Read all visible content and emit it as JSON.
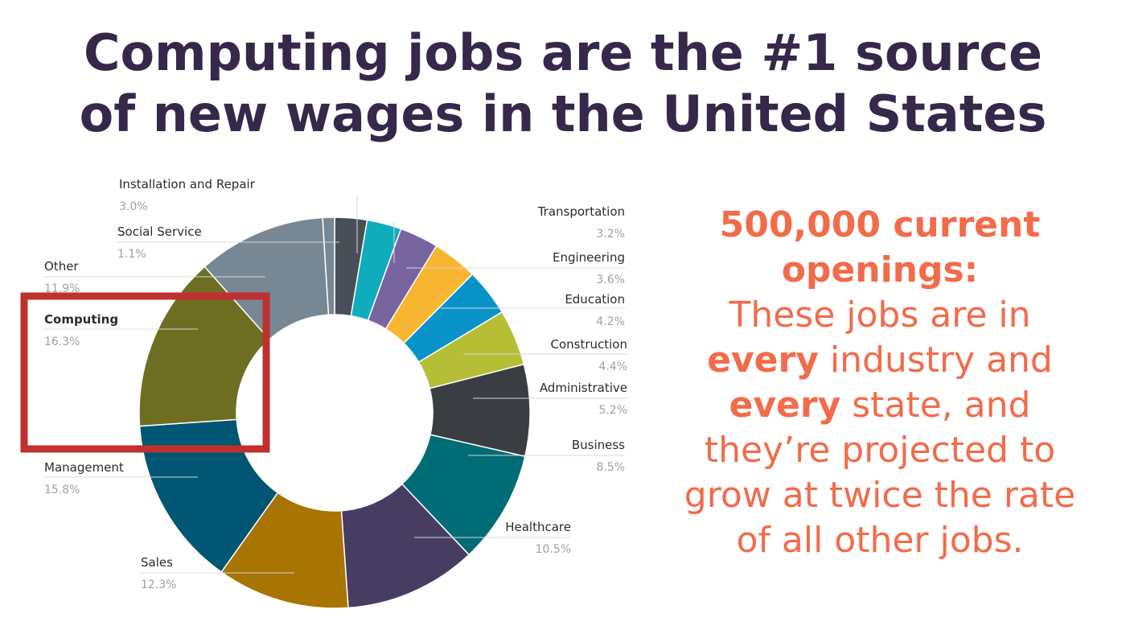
{
  "title": {
    "line1": "Computing jobs are the #1 source",
    "line2": "of new wages in the United States"
  },
  "callout": {
    "headline_line1": "500,000 current",
    "headline_line2": "openings:",
    "line1": "These jobs are in",
    "emph1": "every",
    "line2_rest": " industry and",
    "emph2": "every",
    "line3_rest": " state, and",
    "line4": "they’re projected to",
    "line5": "grow at twice the rate",
    "line6": "of all other jobs."
  },
  "chart_data": {
    "type": "pie",
    "donut": true,
    "highlighted": "Computing",
    "highlight_color": "#c0302e",
    "slices": [
      {
        "label": "Installation and Repair",
        "value": 3.0,
        "display": "3.0%",
        "color": "#4a4f57"
      },
      {
        "label": "Transportation",
        "value": 3.2,
        "display": "3.2%",
        "color": "#0fadbb"
      },
      {
        "label": "Engineering",
        "value": 3.6,
        "display": "3.6%",
        "color": "#78659f"
      },
      {
        "label": "Education",
        "value": 4.2,
        "display": "4.2%",
        "color": "#f8b530"
      },
      {
        "label": "Construction",
        "value": 4.4,
        "display": "4.4%",
        "color": "#0a93c8"
      },
      {
        "label": "Administrative",
        "value": 5.2,
        "display": "5.2%",
        "color": "#b6be36"
      },
      {
        "label": "Business",
        "value": 8.5,
        "display": "8.5%",
        "color": "#3a3d42"
      },
      {
        "label": "Healthcare",
        "value": 10.5,
        "display": "10.5%",
        "color": "#006c75"
      },
      {
        "label": "",
        "value": 12.3,
        "display": "",
        "color": "#473c62"
      },
      {
        "label": "Sales",
        "value": 12.3,
        "display": "12.3%",
        "color": "#a87402"
      },
      {
        "label": "Management",
        "value": 15.8,
        "display": "15.8%",
        "color": "#005673"
      },
      {
        "label": "Computing",
        "value": 16.3,
        "display": "16.3%",
        "color": "#6d6e22"
      },
      {
        "label": "Other",
        "value": 11.9,
        "display": "11.9%",
        "color": "#778793"
      },
      {
        "label": "Social Service",
        "value": 1.1,
        "display": "1.1%",
        "color": "#778793"
      }
    ]
  }
}
